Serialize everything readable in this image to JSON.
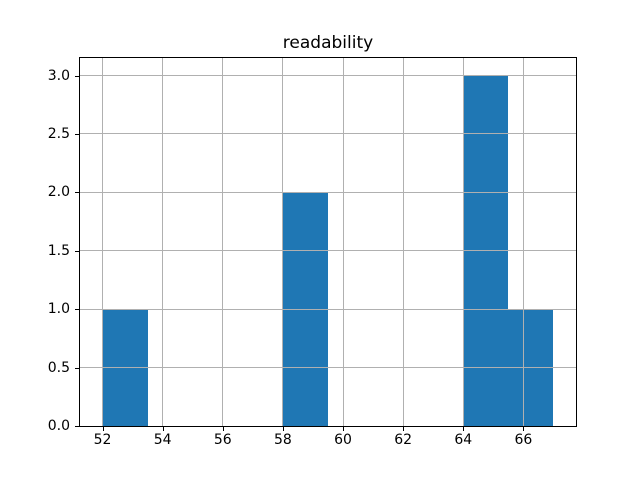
{
  "chart_data": {
    "type": "bar",
    "subtype": "histogram",
    "title": "readability",
    "xlabel": "",
    "ylabel": "",
    "bin_edges": [
      52,
      53.5,
      55,
      56.5,
      58,
      59.5,
      61,
      62.5,
      64,
      65.5,
      67
    ],
    "bin_counts": [
      1,
      0,
      0,
      0,
      2,
      0,
      0,
      0,
      3,
      1
    ],
    "bars": [
      {
        "x0": 52.0,
        "x1": 53.5,
        "count": 1
      },
      {
        "x0": 58.0,
        "x1": 59.5,
        "count": 2
      },
      {
        "x0": 64.0,
        "x1": 65.5,
        "count": 3
      },
      {
        "x0": 65.5,
        "x1": 67.0,
        "count": 1
      }
    ],
    "xticks": [
      52,
      54,
      56,
      58,
      60,
      62,
      64,
      66
    ],
    "xtick_labels": [
      "52",
      "54",
      "56",
      "58",
      "60",
      "62",
      "64",
      "66"
    ],
    "yticks": [
      0.0,
      0.5,
      1.0,
      1.5,
      2.0,
      2.5,
      3.0
    ],
    "ytick_labels": [
      "0.0",
      "0.5",
      "1.0",
      "1.5",
      "2.0",
      "2.5",
      "3.0"
    ],
    "xlim": [
      51.25,
      67.75
    ],
    "ylim": [
      0,
      3.15
    ],
    "grid": true,
    "grid_on_top_of_bars": true,
    "legend": null,
    "bar_color": "#1f77b4",
    "grid_color": "#b0b0b0",
    "spine_color": "#000000",
    "text_color": "#000000",
    "background_color": "#ffffff"
  }
}
